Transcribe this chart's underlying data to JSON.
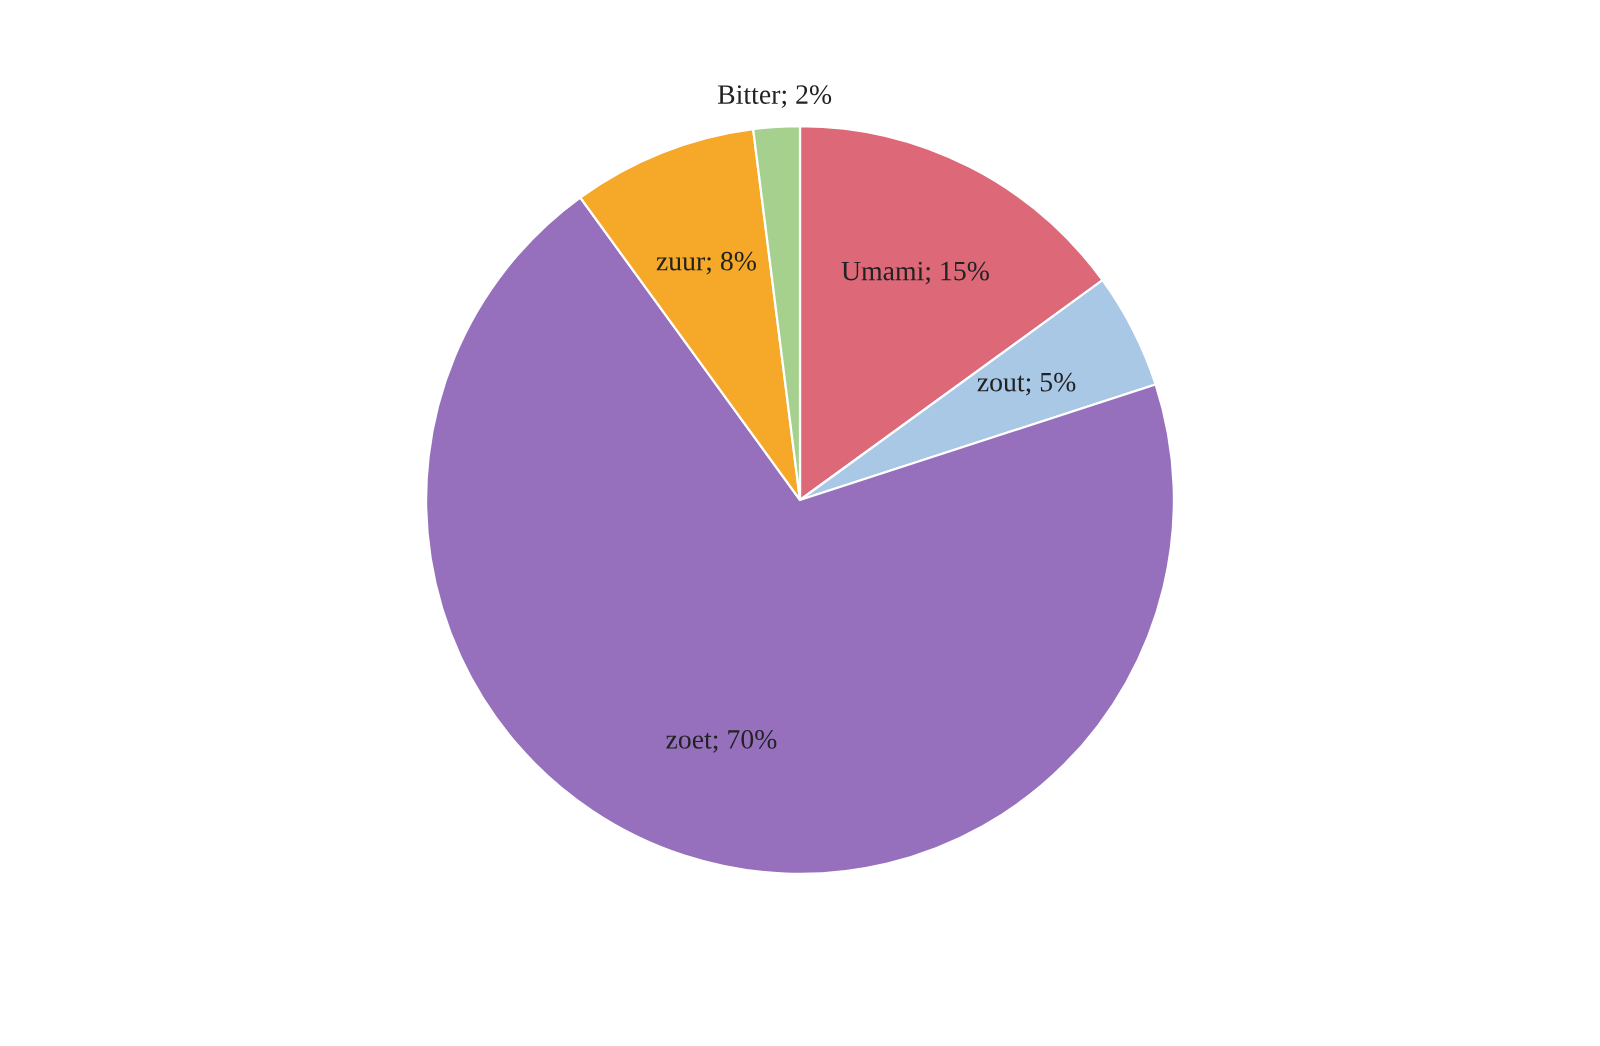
{
  "chart_data": {
    "type": "pie",
    "categories": [
      "Umami",
      "zout",
      "zoet",
      "zuur",
      "Bitter"
    ],
    "values": [
      15,
      5,
      70,
      8,
      2
    ],
    "colors": [
      "#dc6878",
      "#a8c8e6",
      "#9670bc",
      "#f6a828",
      "#a6d08e"
    ],
    "value_labels": [
      "15%",
      "5%",
      "70%",
      "8%",
      "2%"
    ]
  }
}
